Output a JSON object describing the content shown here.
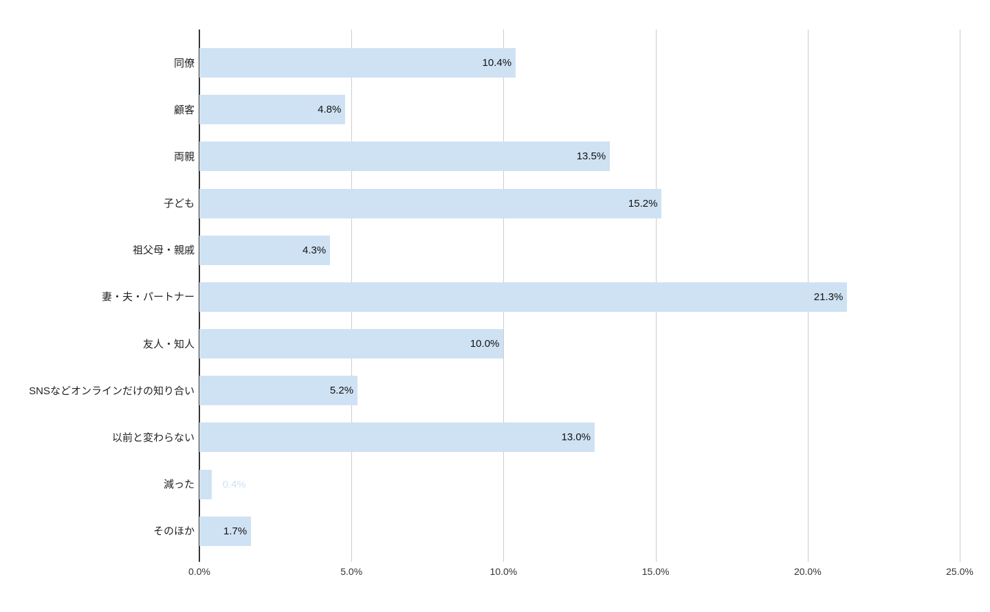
{
  "chart_data": {
    "type": "bar",
    "orientation": "horizontal",
    "title": "",
    "xlabel": "",
    "ylabel": "",
    "categories": [
      "同僚",
      "顧客",
      "両親",
      "子ども",
      "祖父母・親戚",
      "妻・夫・パートナー",
      "友人・知人",
      "SNSなどオンラインだけの知り合い",
      "以前と変わらない",
      "減った",
      "そのほか"
    ],
    "values": [
      10.4,
      4.8,
      13.5,
      15.2,
      4.3,
      21.3,
      10.0,
      5.2,
      13.0,
      0.4,
      1.7
    ],
    "value_labels": [
      "10.4%",
      "4.8%",
      "13.5%",
      "15.2%",
      "4.3%",
      "21.3%",
      "10.0%",
      "5.2%",
      "13.0%",
      "0.4%",
      "1.7%"
    ],
    "x_ticks": [
      "0.0%",
      "5.0%",
      "10.0%",
      "15.0%",
      "20.0%",
      "25.0%"
    ],
    "x_tick_values": [
      0,
      5,
      10,
      15,
      20,
      25
    ],
    "xlim": [
      0,
      25
    ],
    "grid": true,
    "legend_position": "none",
    "colors": {
      "bar": "#cfe2f3",
      "gridline": "#cccccc",
      "baseline": "#333333",
      "value_label_inside": "#111111",
      "value_label_outside": "#cfe2f3",
      "category_label": "#222222",
      "axis_tick_label": "#333333",
      "background": "#ffffff"
    }
  }
}
